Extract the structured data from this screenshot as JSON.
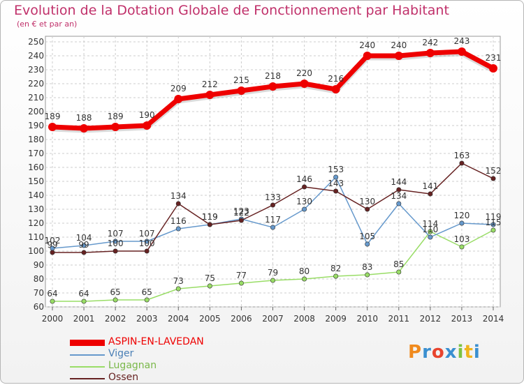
{
  "chart_data": {
    "type": "line",
    "title": "Evolution de la Dotation Globale de Fonctionnement par Habitant",
    "subtitle": "(en € et par an)",
    "x": [
      "2000",
      "2001",
      "2002",
      "2003",
      "2004",
      "2005",
      "2006",
      "2007",
      "2008",
      "2009",
      "2010",
      "2011",
      "2012",
      "2013",
      "2014"
    ],
    "ylim": [
      60,
      250
    ],
    "yticks": [
      60,
      70,
      80,
      90,
      100,
      110,
      120,
      130,
      140,
      150,
      160,
      170,
      180,
      190,
      200,
      210,
      220,
      230,
      240,
      250
    ],
    "grid": true,
    "legend_position": "bottom-left",
    "series": [
      {
        "name": "ASPIN-EN-LAVEDAN",
        "color": "#ee0000",
        "values": [
          189,
          188,
          189,
          190,
          209,
          212,
          215,
          218,
          220,
          216,
          240,
          240,
          242,
          243,
          231
        ],
        "labels": [
          "189",
          "188",
          "189",
          "190",
          "209",
          "212",
          "215",
          "218",
          "220",
          "216",
          "240",
          "240",
          "242",
          "243",
          "231"
        ]
      },
      {
        "name": "Viger",
        "color": "#6699cc",
        "values": [
          102,
          104,
          107,
          107,
          116,
          119,
          123,
          117,
          130,
          153,
          105,
          134,
          110,
          120,
          119
        ],
        "labels": [
          "102",
          "104",
          "107",
          "107",
          "116",
          "119",
          "123",
          "117",
          "130",
          "153",
          "105",
          "134",
          "110",
          "120",
          "119"
        ]
      },
      {
        "name": "Lugagnan",
        "color": "#99dd66",
        "values": [
          64,
          64,
          65,
          65,
          73,
          75,
          77,
          79,
          80,
          82,
          83,
          85,
          114,
          103,
          115
        ],
        "labels": [
          "64",
          "64",
          "65",
          "65",
          "73",
          "75",
          "77",
          "79",
          "80",
          "82",
          "83",
          "85",
          "114",
          "103",
          "115"
        ]
      },
      {
        "name": "Ossen",
        "color": "#662222",
        "values": [
          99,
          99,
          100,
          100,
          134,
          119,
          122,
          133,
          146,
          143,
          130,
          144,
          141,
          163,
          152
        ],
        "labels": [
          "99",
          "99",
          "100",
          "100",
          "134",
          "119",
          "122",
          "133",
          "146",
          "143",
          "130",
          "144",
          "141",
          "163",
          "152"
        ]
      }
    ]
  },
  "logo": {
    "text": "Proxiti"
  }
}
